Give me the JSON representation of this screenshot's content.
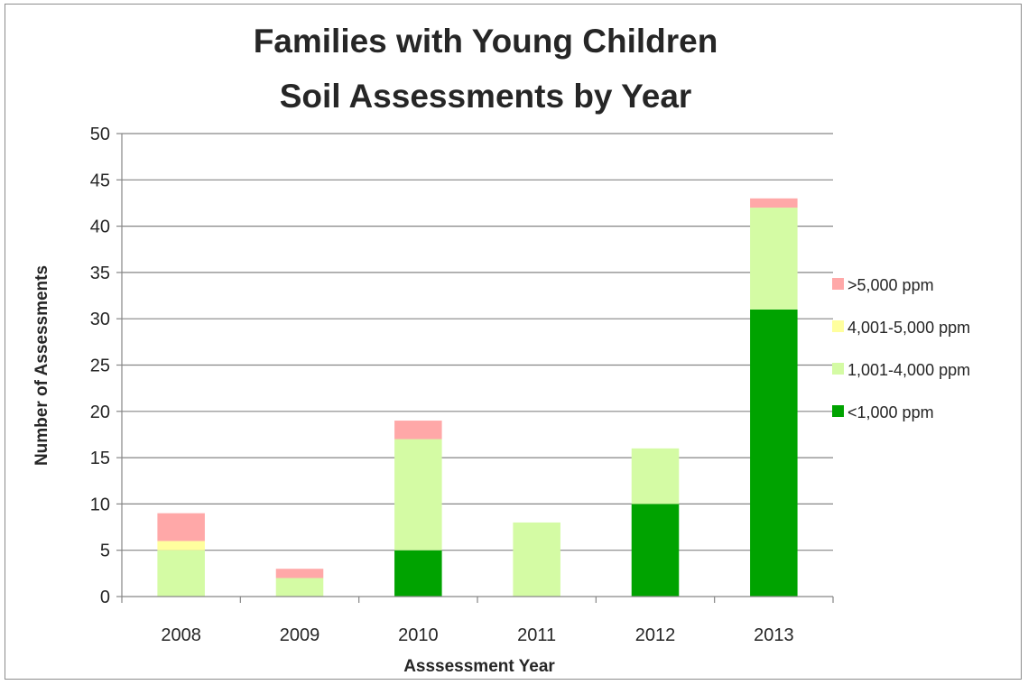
{
  "chart_data": {
    "type": "bar",
    "stacked": true,
    "title_lines": [
      "Families with Young Children",
      "Soil Assessments by Year"
    ],
    "xlabel": "Asssessment Year",
    "ylabel": "Number of Assessments",
    "ylim": [
      0,
      50
    ],
    "yticks": [
      "0",
      "5",
      "10",
      "15",
      "20",
      "25",
      "30",
      "35",
      "40",
      "45",
      "50"
    ],
    "grid": true,
    "legend_position": "right",
    "categories": [
      "2008",
      "2009",
      "2010",
      "2011",
      "2012",
      "2013"
    ],
    "series": [
      {
        "name": "<1,000 ppm",
        "color": "#00a300",
        "values": [
          0,
          0,
          5,
          0,
          10,
          31
        ]
      },
      {
        "name": "1,001-4,000 ppm",
        "color": "#d4fba4",
        "values": [
          5,
          2,
          12,
          8,
          6,
          11
        ]
      },
      {
        "name": "4,001-5,000 ppm",
        "color": "#ffff9e",
        "values": [
          1,
          0,
          0,
          0,
          0,
          0
        ]
      },
      {
        "name": ">5,000 ppm",
        "color": "#ffa8a8",
        "values": [
          3,
          1,
          2,
          0,
          0,
          1
        ]
      }
    ],
    "legend_order": [
      ">5,000 ppm",
      "4,001-5,000 ppm",
      "1,001-4,000 ppm",
      "<1,000 ppm"
    ]
  }
}
